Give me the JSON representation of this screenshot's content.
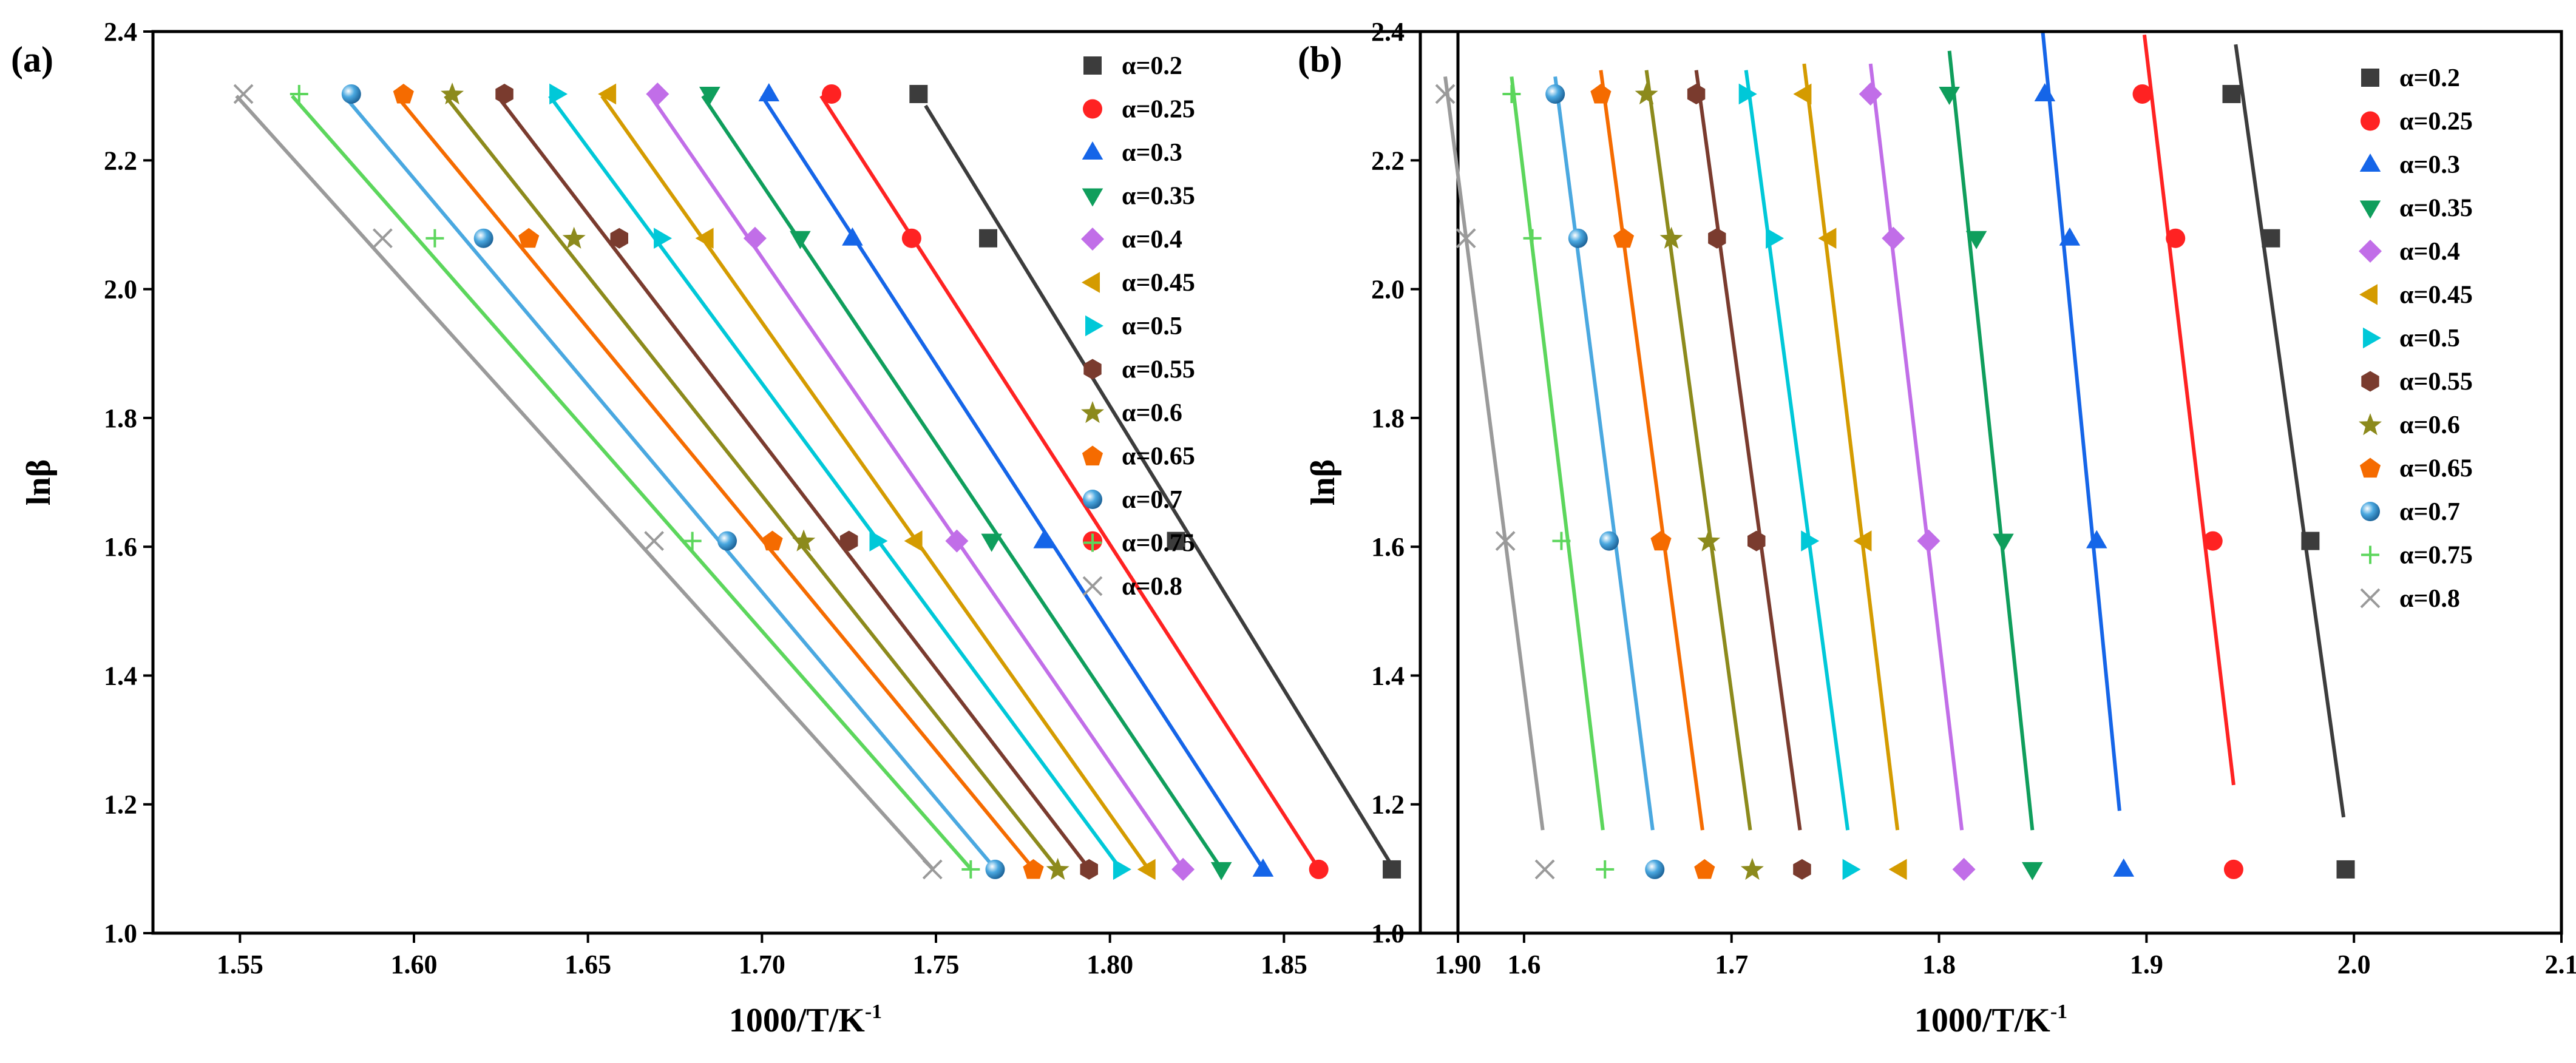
{
  "chart_data": [
    {
      "panel": "(a)",
      "type": "scatter",
      "xlabel": "1000/T/K",
      "xlabel_sup": "-1",
      "ylabel": "lnβ",
      "xlim": [
        1.525,
        1.9
      ],
      "ylim": [
        1.0,
        2.4
      ],
      "xticks": [
        1.55,
        1.6,
        1.65,
        1.7,
        1.75,
        1.8,
        1.85,
        1.9
      ],
      "xtick_labels": [
        "1.55",
        "1.60",
        "1.65",
        "1.70",
        "1.75",
        "1.80",
        "1.85",
        "1.90"
      ],
      "yticks": [
        1.0,
        1.2,
        1.4,
        1.6,
        1.8,
        2.0,
        2.2,
        2.4
      ],
      "ytick_labels": [
        "1.0",
        "1.2",
        "1.4",
        "1.6",
        "1.8",
        "2.0",
        "2.2",
        "2.4"
      ],
      "y_values": [
        2.303,
        2.079,
        1.609,
        1.099
      ],
      "legend_position": "right",
      "series": [
        {
          "name": "α=0.2",
          "x": [
            1.745,
            1.765,
            1.819,
            1.881
          ],
          "fit": [
            [
              1.747,
              2.285
            ],
            [
              1.881,
              1.105
            ]
          ]
        },
        {
          "name": "α=0.25",
          "x": [
            1.72,
            1.743,
            1.795,
            1.86
          ],
          "fit": [
            [
              1.717,
              2.3
            ],
            [
              1.86,
              1.1
            ]
          ]
        },
        {
          "name": "α=0.3",
          "x": [
            1.702,
            1.726,
            1.781,
            1.844
          ],
          "fit": [
            [
              1.7,
              2.3
            ],
            [
              1.844,
              1.1
            ]
          ]
        },
        {
          "name": "α=0.35",
          "x": [
            1.685,
            1.711,
            1.766,
            1.832
          ],
          "fit": [
            [
              1.683,
              2.3
            ],
            [
              1.832,
              1.1
            ]
          ]
        },
        {
          "name": "α=0.4",
          "x": [
            1.67,
            1.698,
            1.756,
            1.821
          ],
          "fit": [
            [
              1.668,
              2.3
            ],
            [
              1.821,
              1.1
            ]
          ]
        },
        {
          "name": "α=0.45",
          "x": [
            1.656,
            1.684,
            1.744,
            1.811
          ],
          "fit": [
            [
              1.654,
              2.3
            ],
            [
              1.811,
              1.1
            ]
          ]
        },
        {
          "name": "α=0.5",
          "x": [
            1.641,
            1.671,
            1.733,
            1.803
          ],
          "fit": [
            [
              1.639,
              2.3
            ],
            [
              1.803,
              1.1
            ]
          ]
        },
        {
          "name": "α=0.55",
          "x": [
            1.626,
            1.659,
            1.725,
            1.794
          ],
          "fit": [
            [
              1.624,
              2.3
            ],
            [
              1.794,
              1.1
            ]
          ]
        },
        {
          "name": "α=0.6",
          "x": [
            1.611,
            1.646,
            1.712,
            1.785
          ],
          "fit": [
            [
              1.609,
              2.3
            ],
            [
              1.785,
              1.1
            ]
          ]
        },
        {
          "name": "α=0.65",
          "x": [
            1.597,
            1.633,
            1.703,
            1.778
          ],
          "fit": [
            [
              1.595,
              2.3
            ],
            [
              1.778,
              1.1
            ]
          ]
        },
        {
          "name": "α=0.7",
          "x": [
            1.582,
            1.62,
            1.69,
            1.767
          ],
          "fit": [
            [
              1.58,
              2.3
            ],
            [
              1.767,
              1.1
            ]
          ]
        },
        {
          "name": "α=0.75",
          "x": [
            1.567,
            1.606,
            1.68,
            1.76
          ],
          "fit": [
            [
              1.565,
              2.3
            ],
            [
              1.76,
              1.1
            ]
          ]
        },
        {
          "name": "α=0.8",
          "x": [
            1.551,
            1.591,
            1.669,
            1.749
          ],
          "fit": [
            [
              1.549,
              2.3
            ],
            [
              1.749,
              1.1
            ]
          ]
        }
      ]
    },
    {
      "panel": "(b)",
      "type": "scatter",
      "xlabel": "1000/T/K",
      "xlabel_sup": "-1",
      "ylabel": "lnβ",
      "xlim": [
        1.55,
        2.1
      ],
      "ylim": [
        1.0,
        2.4
      ],
      "xticks": [
        1.6,
        1.7,
        1.8,
        1.9,
        2.0,
        2.1
      ],
      "xtick_labels": [
        "1.6",
        "1.7",
        "1.8",
        "1.9",
        "2.0",
        "2.1"
      ],
      "yticks": [
        1.0,
        1.2,
        1.4,
        1.6,
        1.8,
        2.0,
        2.2,
        2.4
      ],
      "ytick_labels": [
        "1.0",
        "1.2",
        "1.4",
        "1.6",
        "1.8",
        "2.0",
        "2.2",
        "2.4"
      ],
      "y_values": [
        2.303,
        2.079,
        1.609,
        1.099
      ],
      "legend_position": "right",
      "series": [
        {
          "name": "α=0.2",
          "x": [
            1.941,
            1.96,
            1.979,
            1.996
          ],
          "fit": [
            [
              1.943,
              2.38
            ],
            [
              1.995,
              1.18
            ]
          ]
        },
        {
          "name": "α=0.25",
          "x": [
            1.898,
            1.914,
            1.932,
            1.942
          ],
          "fit": [
            [
              1.899,
              2.395
            ],
            [
              1.942,
              1.23
            ]
          ]
        },
        {
          "name": "α=0.3",
          "x": [
            1.851,
            1.863,
            1.876,
            1.889
          ],
          "fit": [
            [
              1.85,
              2.4
            ],
            [
              1.887,
              1.19
            ]
          ]
        },
        {
          "name": "α=0.35",
          "x": [
            1.805,
            1.818,
            1.831,
            1.845
          ],
          "fit": [
            [
              1.805,
              2.37
            ],
            [
              1.845,
              1.16
            ]
          ]
        },
        {
          "name": "α=0.4",
          "x": [
            1.767,
            1.778,
            1.795,
            1.812
          ],
          "fit": [
            [
              1.767,
              2.35
            ],
            [
              1.811,
              1.16
            ]
          ]
        },
        {
          "name": "α=0.45",
          "x": [
            1.735,
            1.747,
            1.764,
            1.781
          ],
          "fit": [
            [
              1.735,
              2.35
            ],
            [
              1.78,
              1.16
            ]
          ]
        },
        {
          "name": "α=0.5",
          "x": [
            1.707,
            1.72,
            1.737,
            1.757
          ],
          "fit": [
            [
              1.707,
              2.34
            ],
            [
              1.756,
              1.16
            ]
          ]
        },
        {
          "name": "α=0.55",
          "x": [
            1.683,
            1.693,
            1.712,
            1.734
          ],
          "fit": [
            [
              1.683,
              2.34
            ],
            [
              1.733,
              1.16
            ]
          ]
        },
        {
          "name": "α=0.6",
          "x": [
            1.659,
            1.671,
            1.689,
            1.71
          ],
          "fit": [
            [
              1.659,
              2.34
            ],
            [
              1.709,
              1.16
            ]
          ]
        },
        {
          "name": "α=0.65",
          "x": [
            1.637,
            1.648,
            1.666,
            1.687
          ],
          "fit": [
            [
              1.637,
              2.34
            ],
            [
              1.686,
              1.16
            ]
          ]
        },
        {
          "name": "α=0.7",
          "x": [
            1.615,
            1.626,
            1.641,
            1.663
          ],
          "fit": [
            [
              1.615,
              2.33
            ],
            [
              1.662,
              1.16
            ]
          ]
        },
        {
          "name": "α=0.75",
          "x": [
            1.594,
            1.604,
            1.618,
            1.639
          ],
          "fit": [
            [
              1.594,
              2.33
            ],
            [
              1.638,
              1.16
            ]
          ]
        },
        {
          "name": "α=0.8",
          "x": [
            1.562,
            1.572,
            1.591,
            1.61
          ],
          "fit": [
            [
              1.562,
              2.33
            ],
            [
              1.609,
              1.16
            ]
          ]
        }
      ]
    }
  ],
  "series_styles": [
    {
      "color": "#3c3c3c",
      "marker": "square"
    },
    {
      "color": "#ff2222",
      "marker": "circle"
    },
    {
      "color": "#1565e8",
      "marker": "triangle-up"
    },
    {
      "color": "#0f9e5c",
      "marker": "triangle-down"
    },
    {
      "color": "#c16ee8",
      "marker": "diamond"
    },
    {
      "color": "#d49b00",
      "marker": "triangle-left"
    },
    {
      "color": "#00c8d8",
      "marker": "triangle-right"
    },
    {
      "color": "#7a3b2e",
      "marker": "hexagon"
    },
    {
      "color": "#8c8a1c",
      "marker": "star"
    },
    {
      "color": "#f56b00",
      "marker": "pentagon"
    },
    {
      "color": "#4aa8e0",
      "marker": "sphere"
    },
    {
      "color": "#5cd65c",
      "marker": "plus"
    },
    {
      "color": "#9a9a9a",
      "marker": "x"
    }
  ]
}
